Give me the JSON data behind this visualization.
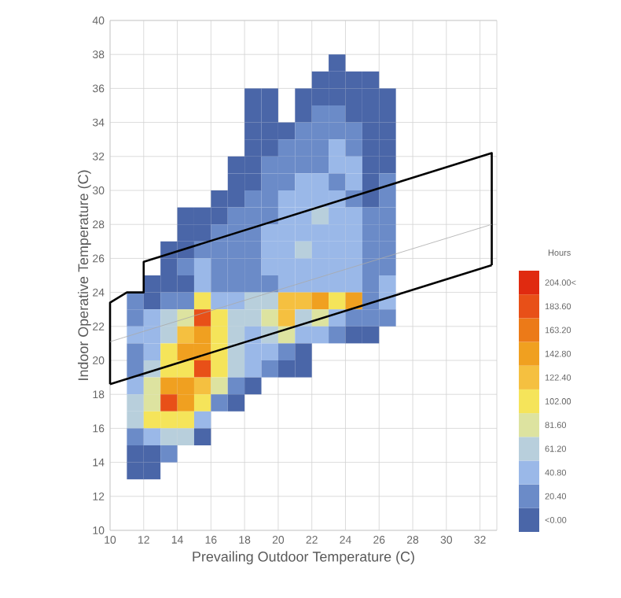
{
  "chart_data": {
    "type": "heatmap",
    "xlabel": "Prevailing Outdoor Temperature (C)",
    "ylabel": "Indoor Operative Temperature (C)",
    "clabel": "Hours",
    "x": [
      11.5,
      12.5,
      13.5,
      14.5,
      15.5,
      16.5,
      17.5,
      18.5,
      19.5,
      20.5,
      21.5,
      22.5,
      23.5,
      24.5,
      25.5,
      26.5
    ],
    "y": [
      37.5,
      36.5,
      35.5,
      34.5,
      33.5,
      32.5,
      31.5,
      30.5,
      29.5,
      28.5,
      27.5,
      26.5,
      25.5,
      24.5,
      23.5,
      22.5,
      21.5,
      20.5,
      19.5,
      18.5,
      17.5,
      16.5,
      15.5,
      14.5,
      13.5
    ],
    "cells": [
      [
        null,
        null,
        null,
        null,
        null,
        null,
        null,
        null,
        null,
        null,
        null,
        null,
        5,
        null,
        null,
        null
      ],
      [
        null,
        null,
        null,
        null,
        null,
        null,
        null,
        null,
        null,
        null,
        null,
        5,
        5,
        5,
        5,
        null
      ],
      [
        null,
        null,
        null,
        null,
        null,
        null,
        null,
        5,
        5,
        null,
        5,
        5,
        5,
        5,
        5,
        5
      ],
      [
        null,
        null,
        null,
        null,
        null,
        null,
        null,
        5,
        5,
        null,
        5,
        25,
        25,
        5,
        5,
        5
      ],
      [
        null,
        null,
        null,
        null,
        null,
        null,
        null,
        5,
        5,
        5,
        25,
        25,
        25,
        25,
        5,
        5
      ],
      [
        null,
        null,
        null,
        null,
        null,
        null,
        null,
        5,
        5,
        25,
        25,
        25,
        46,
        25,
        5,
        5
      ],
      [
        null,
        null,
        null,
        null,
        null,
        null,
        5,
        5,
        25,
        25,
        25,
        25,
        46,
        46,
        5,
        5
      ],
      [
        null,
        null,
        null,
        null,
        null,
        null,
        5,
        5,
        25,
        25,
        46,
        46,
        25,
        46,
        5,
        25
      ],
      [
        null,
        null,
        null,
        null,
        null,
        5,
        5,
        25,
        25,
        46,
        46,
        46,
        46,
        25,
        5,
        25
      ],
      [
        null,
        null,
        null,
        5,
        5,
        5,
        25,
        25,
        25,
        46,
        46,
        66,
        46,
        46,
        25,
        25
      ],
      [
        null,
        null,
        null,
        5,
        5,
        25,
        25,
        25,
        46,
        46,
        46,
        46,
        46,
        46,
        25,
        25
      ],
      [
        null,
        null,
        5,
        5,
        25,
        25,
        25,
        25,
        46,
        46,
        66,
        46,
        46,
        46,
        25,
        25
      ],
      [
        null,
        null,
        5,
        25,
        46,
        25,
        25,
        25,
        46,
        46,
        46,
        46,
        46,
        46,
        25,
        25
      ],
      [
        null,
        5,
        5,
        5,
        46,
        25,
        25,
        25,
        25,
        46,
        46,
        46,
        46,
        46,
        25,
        46
      ],
      [
        25,
        5,
        25,
        25,
        107,
        46,
        46,
        66,
        66,
        128,
        128,
        148,
        107,
        148,
        25,
        46
      ],
      [
        25,
        46,
        66,
        87,
        189,
        107,
        66,
        66,
        87,
        128,
        66,
        87,
        46,
        25,
        25,
        25
      ],
      [
        46,
        46,
        66,
        128,
        148,
        107,
        66,
        46,
        66,
        87,
        46,
        46,
        25,
        5,
        5,
        null
      ],
      [
        25,
        46,
        107,
        148,
        148,
        107,
        66,
        46,
        46,
        25,
        5,
        null,
        null,
        null,
        null,
        null
      ],
      [
        25,
        66,
        107,
        107,
        189,
        107,
        66,
        46,
        25,
        5,
        5,
        null,
        null,
        null,
        null,
        null
      ],
      [
        46,
        87,
        148,
        148,
        128,
        87,
        25,
        5,
        null,
        null,
        null,
        null,
        null,
        null,
        null,
        null
      ],
      [
        66,
        87,
        189,
        148,
        107,
        25,
        5,
        null,
        null,
        null,
        null,
        null,
        null,
        null,
        null,
        null
      ],
      [
        66,
        107,
        107,
        107,
        46,
        null,
        null,
        null,
        null,
        null,
        null,
        null,
        null,
        null,
        null,
        null
      ],
      [
        25,
        46,
        66,
        66,
        5,
        null,
        null,
        null,
        null,
        null,
        null,
        null,
        null,
        null,
        null,
        null
      ],
      [
        5,
        5,
        25,
        null,
        null,
        null,
        null,
        null,
        null,
        null,
        null,
        null,
        null,
        null,
        null,
        null
      ],
      [
        5,
        5,
        null,
        null,
        null,
        null,
        null,
        null,
        null,
        null,
        null,
        null,
        null,
        null,
        null,
        null
      ]
    ],
    "clim": [
      -10.2,
      214.2
    ],
    "cticks": [
      {
        "value": 0,
        "label": "<0.00"
      },
      {
        "value": 20.4,
        "label": "20.40"
      },
      {
        "value": 40.8,
        "label": "40.80"
      },
      {
        "value": 61.2,
        "label": "61.20"
      },
      {
        "value": 81.6,
        "label": "81.60"
      },
      {
        "value": 102,
        "label": "102.00"
      },
      {
        "value": 122.4,
        "label": "122.40"
      },
      {
        "value": 142.8,
        "label": "142.80"
      },
      {
        "value": 163.2,
        "label": "163.20"
      },
      {
        "value": 183.6,
        "label": "183.60"
      },
      {
        "value": 204,
        "label": "204.00<"
      }
    ],
    "series": [
      {
        "type": "line",
        "color": "#000000",
        "x": [
          10,
          32.7
        ],
        "values": [
          18.6,
          25.6
        ]
      },
      {
        "type": "line",
        "color": "#000000",
        "x": [
          10,
          10,
          11,
          12,
          12,
          32.7,
          32.7
        ],
        "values": [
          18.6,
          23.4,
          24,
          24,
          25.8,
          32.2,
          25.6
        ]
      },
      {
        "type": "line",
        "color": "#aaaaaa",
        "x": [
          10,
          32.7
        ],
        "values": [
          21.1,
          28.0
        ]
      }
    ],
    "xlim": [
      10,
      33
    ],
    "ylim": [
      10,
      40
    ],
    "xticks": [
      10,
      12,
      14,
      16,
      18,
      20,
      22,
      24,
      26,
      28,
      30,
      32
    ],
    "yticks": [
      10,
      12,
      14,
      16,
      18,
      20,
      22,
      24,
      26,
      28,
      30,
      32,
      34,
      36,
      38,
      40
    ],
    "grid": true
  }
}
